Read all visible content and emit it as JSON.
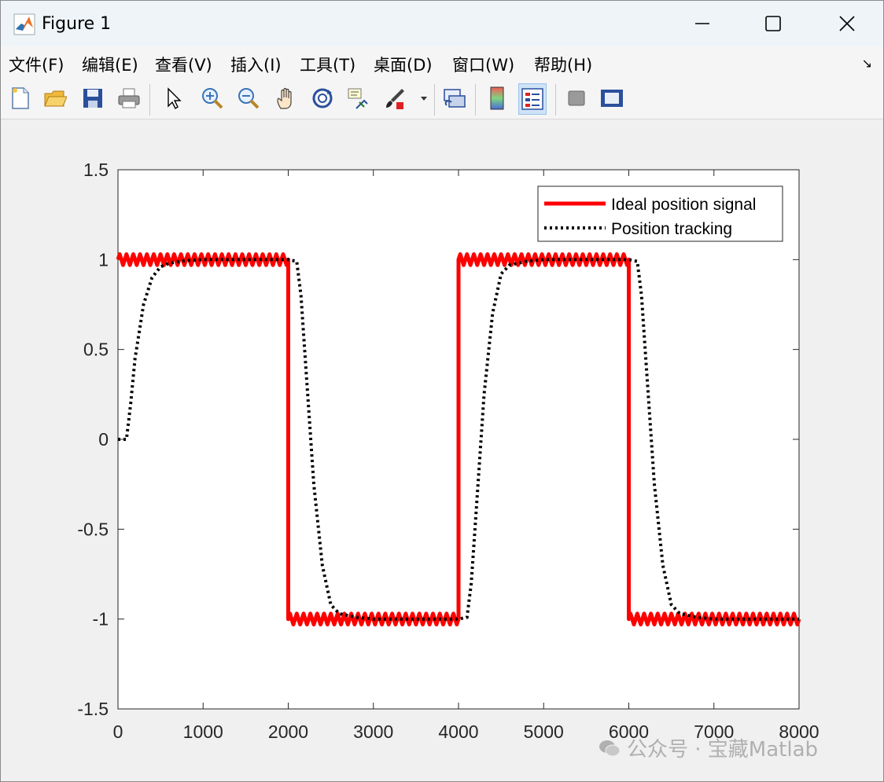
{
  "window": {
    "title": "Figure 1"
  },
  "menu": [
    {
      "label": "文件(F)"
    },
    {
      "label": "编辑(E)"
    },
    {
      "label": "查看(V)"
    },
    {
      "label": "插入(I)"
    },
    {
      "label": "工具(T)"
    },
    {
      "label": "桌面(D)"
    },
    {
      "label": "窗口(W)"
    },
    {
      "label": "帮助(H)"
    }
  ],
  "toolbar": [
    {
      "icon": "new-figure-icon"
    },
    {
      "icon": "open-file-icon"
    },
    {
      "icon": "save-icon"
    },
    {
      "icon": "print-icon"
    },
    {
      "icon": "select-pointer-icon"
    },
    {
      "icon": "zoom-in-icon"
    },
    {
      "icon": "zoom-out-icon"
    },
    {
      "icon": "pan-hand-icon"
    },
    {
      "icon": "rotate-3d-icon"
    },
    {
      "icon": "data-cursor-icon"
    },
    {
      "icon": "brush-icon"
    },
    {
      "icon": "link-plot-icon"
    },
    {
      "icon": "colorbar-icon"
    },
    {
      "icon": "legend-icon"
    },
    {
      "icon": "hide-plot-tools-icon"
    },
    {
      "icon": "show-plot-tools-icon"
    }
  ],
  "colors": {
    "ideal": "#ff0000",
    "tracking": "#000000",
    "titlebar": "#eff4f9"
  },
  "watermark": "公众号 · 宝藏Matlab",
  "chart_data": {
    "type": "line",
    "title": "",
    "xlabel": "",
    "ylabel": "",
    "xlim": [
      0,
      8000
    ],
    "ylim": [
      -1.5,
      1.5
    ],
    "xticks": [
      0,
      1000,
      2000,
      3000,
      4000,
      5000,
      6000,
      7000,
      8000
    ],
    "xtick_labels": [
      "0",
      "1000",
      "2000",
      "3000",
      "4000",
      "5000",
      "6000",
      "7000",
      "8000"
    ],
    "yticks": [
      1.5,
      1,
      0.5,
      0,
      -0.5,
      -1,
      -1.5
    ],
    "ytick_labels": [
      "1.5",
      "1",
      "0.5",
      "0",
      "-0.5",
      "-1",
      "-1.5"
    ],
    "grid": false,
    "legend_position": "top-right",
    "series": [
      {
        "name": "Ideal position signal",
        "style": "solid",
        "x": [
          0,
          2000,
          2000,
          4000,
          4000,
          6000,
          6000,
          8000
        ],
        "y": [
          1,
          1,
          -1,
          -1,
          1,
          1,
          -1,
          -1
        ],
        "ripple_amplitude": 0.03
      },
      {
        "name": "Position tracking",
        "style": "dotted",
        "x": [
          0,
          100,
          150,
          200,
          300,
          400,
          500,
          600,
          800,
          1000,
          1500,
          2000,
          2100,
          2150,
          2200,
          2300,
          2400,
          2500,
          2600,
          2800,
          3000,
          3500,
          4000,
          4100,
          4150,
          4200,
          4300,
          4400,
          4500,
          4600,
          4800,
          5000,
          5500,
          6000,
          6100,
          6150,
          6200,
          6300,
          6400,
          6500,
          6600,
          6800,
          7000,
          7500,
          8000
        ],
        "y": [
          0,
          0,
          0.2,
          0.45,
          0.75,
          0.9,
          0.96,
          0.98,
          0.995,
          1,
          1,
          1,
          0.99,
          0.8,
          0.45,
          -0.25,
          -0.7,
          -0.92,
          -0.97,
          -0.99,
          -1,
          -1,
          -1,
          -0.99,
          -0.8,
          -0.45,
          0.25,
          0.7,
          0.92,
          0.97,
          0.99,
          1,
          1,
          1,
          0.99,
          0.8,
          0.45,
          -0.25,
          -0.7,
          -0.92,
          -0.97,
          -0.99,
          -1,
          -1,
          -1
        ]
      }
    ]
  }
}
